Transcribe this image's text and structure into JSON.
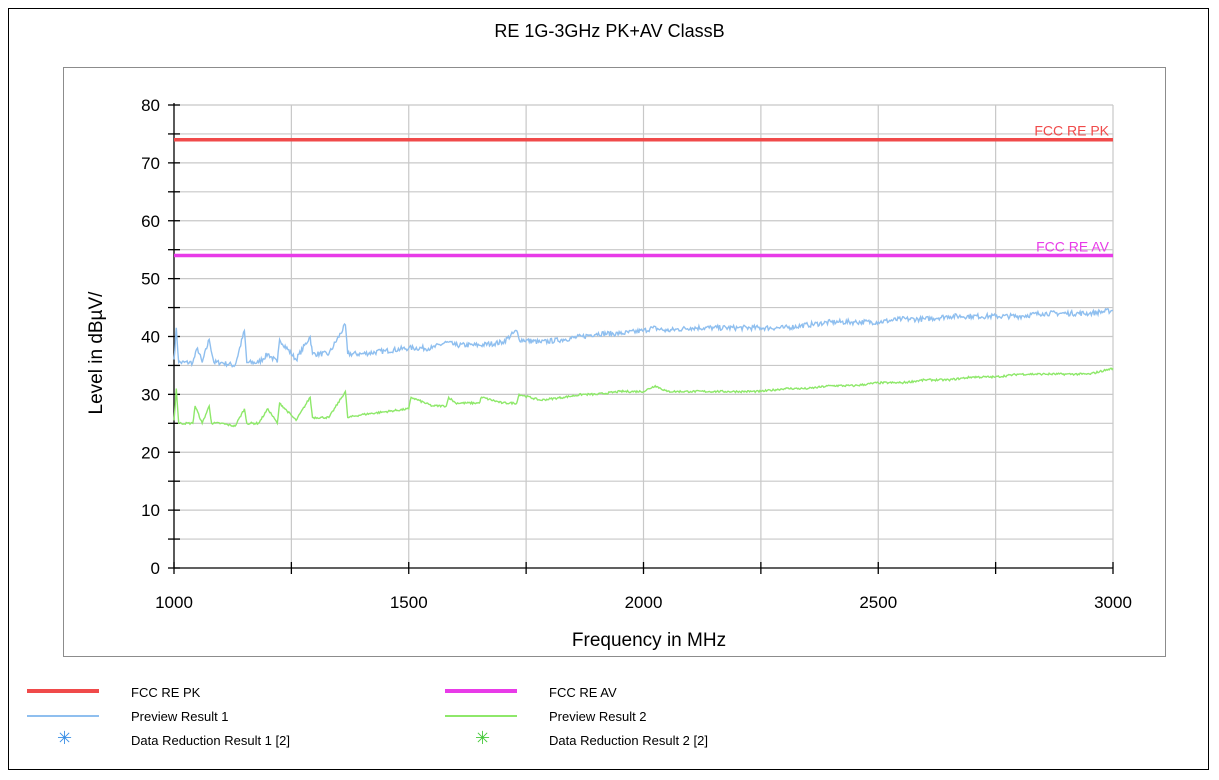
{
  "chart_data": {
    "type": "line",
    "title": "RE 1G-3GHz PK+AV ClassB",
    "xlabel": "Frequency in MHz",
    "ylabel": "Level in dBµV/",
    "xlim": [
      1000,
      3000
    ],
    "ylim": [
      0,
      80
    ],
    "x_ticks": [
      "1000",
      "1500",
      "2000",
      "2500",
      "3000"
    ],
    "y_ticks": [
      "0",
      "10",
      "20",
      "30",
      "40",
      "50",
      "60",
      "70",
      "80"
    ],
    "grid": true,
    "limit_lines": [
      {
        "name": "FCC RE PK",
        "label": "FCC RE PK",
        "value": 74,
        "color": "#f04a4a"
      },
      {
        "name": "FCC RE AV",
        "label": "FCC RE AV",
        "value": 54,
        "color": "#e83be8"
      }
    ],
    "series": [
      {
        "name": "Preview Result 1",
        "color": "#8fbfef",
        "x": [
          1000,
          1005,
          1010,
          1040,
          1050,
          1060,
          1075,
          1085,
          1100,
          1130,
          1150,
          1155,
          1180,
          1200,
          1220,
          1225,
          1260,
          1290,
          1295,
          1330,
          1365,
          1370,
          1400,
          1450,
          1500,
          1550,
          1580,
          1600,
          1650,
          1700,
          1730,
          1735,
          1780,
          1830,
          1870,
          1900,
          1950,
          2000,
          2020,
          2050,
          2100,
          2150,
          2200,
          2250,
          2300,
          2350,
          2400,
          2450,
          2500,
          2550,
          2600,
          2650,
          2700,
          2750,
          2800,
          2850,
          2900,
          2950,
          3000
        ],
        "values": [
          36,
          41.5,
          35.5,
          35.5,
          38,
          35.5,
          39.5,
          35.5,
          35.5,
          35,
          41,
          35.5,
          35.5,
          37,
          35.5,
          39.5,
          36,
          40,
          37,
          37,
          42,
          37,
          37,
          37.5,
          38,
          38,
          39,
          38.5,
          38.5,
          39,
          41,
          39.5,
          39,
          39.5,
          40,
          40.5,
          40.5,
          41,
          41.5,
          41,
          41.5,
          41.5,
          41.5,
          41.5,
          41.5,
          42,
          42.5,
          42.5,
          42.5,
          43,
          43,
          43.5,
          43.5,
          43.5,
          43.5,
          44,
          44,
          44,
          44.5
        ]
      },
      {
        "name": "Preview Result 2",
        "color": "#8ee86a",
        "x": [
          1000,
          1005,
          1010,
          1040,
          1045,
          1060,
          1075,
          1080,
          1100,
          1130,
          1150,
          1155,
          1180,
          1200,
          1220,
          1225,
          1260,
          1290,
          1295,
          1330,
          1365,
          1370,
          1400,
          1450,
          1500,
          1505,
          1550,
          1580,
          1585,
          1600,
          1650,
          1655,
          1700,
          1730,
          1735,
          1780,
          1830,
          1870,
          1900,
          1950,
          2000,
          2025,
          2050,
          2100,
          2150,
          2200,
          2250,
          2300,
          2350,
          2400,
          2450,
          2500,
          2550,
          2600,
          2650,
          2700,
          2750,
          2800,
          2850,
          2900,
          2950,
          3000
        ],
        "values": [
          25.5,
          31,
          25,
          25,
          28,
          25,
          28,
          25,
          25,
          24.5,
          27.5,
          25,
          25,
          27.5,
          25,
          28.5,
          25.5,
          29.5,
          26,
          26,
          30.5,
          26,
          26.5,
          27,
          27.5,
          29.5,
          28,
          28,
          29.5,
          28.5,
          28.5,
          29.5,
          28.5,
          28.5,
          30,
          29,
          29.5,
          30,
          30,
          30.5,
          30.5,
          31.5,
          30.5,
          30.5,
          30.5,
          30.5,
          30.5,
          31,
          31,
          31.5,
          31.5,
          32,
          32,
          32.5,
          32.5,
          33,
          33,
          33.5,
          33.5,
          33.5,
          33.5,
          34.5
        ]
      }
    ],
    "legend": [
      {
        "label": "FCC RE PK",
        "kind": "line",
        "color": "#f04a4a"
      },
      {
        "label": "FCC RE AV",
        "kind": "line",
        "color": "#e83be8"
      },
      {
        "label": "Preview Result 1",
        "kind": "thin-line",
        "color": "#8fbfef"
      },
      {
        "label": "Preview Result 2",
        "kind": "thin-line",
        "color": "#8ee86a"
      },
      {
        "label": "Data Reduction Result 1 [2]",
        "kind": "asterisk",
        "color": "#3a8fe6"
      },
      {
        "label": "Data Reduction Result 2 [2]",
        "kind": "asterisk",
        "color": "#46c93a"
      }
    ]
  }
}
